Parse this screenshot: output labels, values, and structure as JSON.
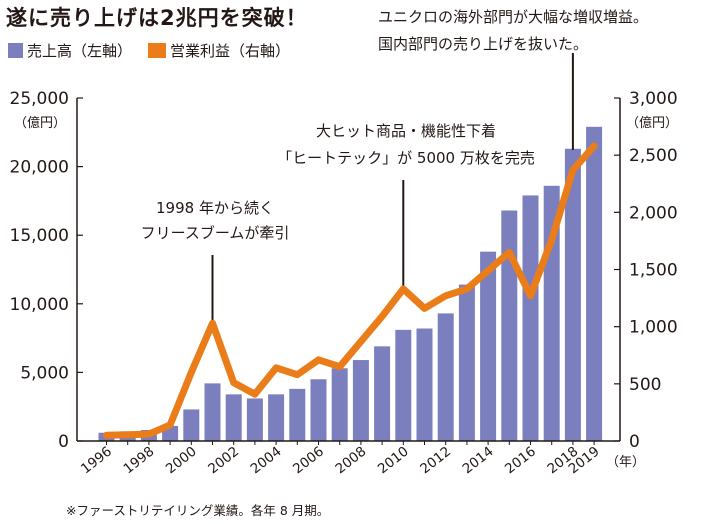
{
  "title": "遂に売り上げは2兆円を突破！",
  "legend": {
    "sales": "売上高（左軸）",
    "profit": "営業利益（右軸）"
  },
  "note_top": {
    "line1": "ユニクロの海外部門が大幅な増収増益。",
    "line2": "国内部門の売り上げを抜いた。"
  },
  "left_unit": "（億円）",
  "right_unit": "（億円）",
  "year_unit": "（年）",
  "footnote": "※ファーストリテイリング業績。各年 8 月期。",
  "colors": {
    "bar": "#7b7fbd",
    "line": "#ea7d1a",
    "text": "#231815"
  },
  "chart_data": {
    "type": "bar",
    "title": "遂に売り上げは2兆円を突破！",
    "categories": [
      "1996",
      "1997",
      "1998",
      "1999",
      "2000",
      "2001",
      "2002",
      "2003",
      "2004",
      "2005",
      "2006",
      "2007",
      "2008",
      "2009",
      "2010",
      "2011",
      "2012",
      "2013",
      "2014",
      "2015",
      "2016",
      "2017",
      "2018",
      "2019"
    ],
    "x_tick_labels": [
      "1996",
      "1998",
      "2000",
      "2002",
      "2004",
      "2006",
      "2008",
      "2010",
      "2012",
      "2014",
      "2016",
      "2018",
      "2019"
    ],
    "series": [
      {
        "name": "売上高（左軸）",
        "type": "bar",
        "axis": "left",
        "values": [
          600,
          700,
          800,
          1100,
          2300,
          4200,
          3400,
          3100,
          3400,
          3800,
          4500,
          5300,
          5900,
          6900,
          8100,
          8200,
          9300,
          11400,
          13800,
          16800,
          17900,
          18600,
          21300,
          22900
        ]
      },
      {
        "name": "営業利益（右軸）",
        "type": "line",
        "axis": "right",
        "values": [
          50,
          55,
          60,
          140,
          600,
          1030,
          510,
          410,
          640,
          580,
          710,
          650,
          870,
          1090,
          1330,
          1160,
          1270,
          1330,
          1490,
          1650,
          1270,
          1760,
          2370,
          2580
        ]
      }
    ],
    "y_left": {
      "min": 0,
      "max": 25000,
      "ticks": [
        "0",
        "5,000",
        "10,000",
        "15,000",
        "20,000",
        "25,000"
      ],
      "unit": "（億円）"
    },
    "y_right": {
      "min": 0,
      "max": 3000,
      "ticks": [
        "0",
        "500",
        "1,000",
        "1,500",
        "2,000",
        "2,500",
        "3,000"
      ],
      "unit": "（億円）"
    },
    "annotations": [
      {
        "lines": [
          "1998 年から続く",
          "フリースブームが牽引"
        ],
        "year": "2001"
      },
      {
        "lines": [
          "大ヒット商品・機能性下着",
          "「ヒートテック」が 5000 万枚を完売"
        ],
        "year": "2010"
      }
    ],
    "grid": false
  }
}
